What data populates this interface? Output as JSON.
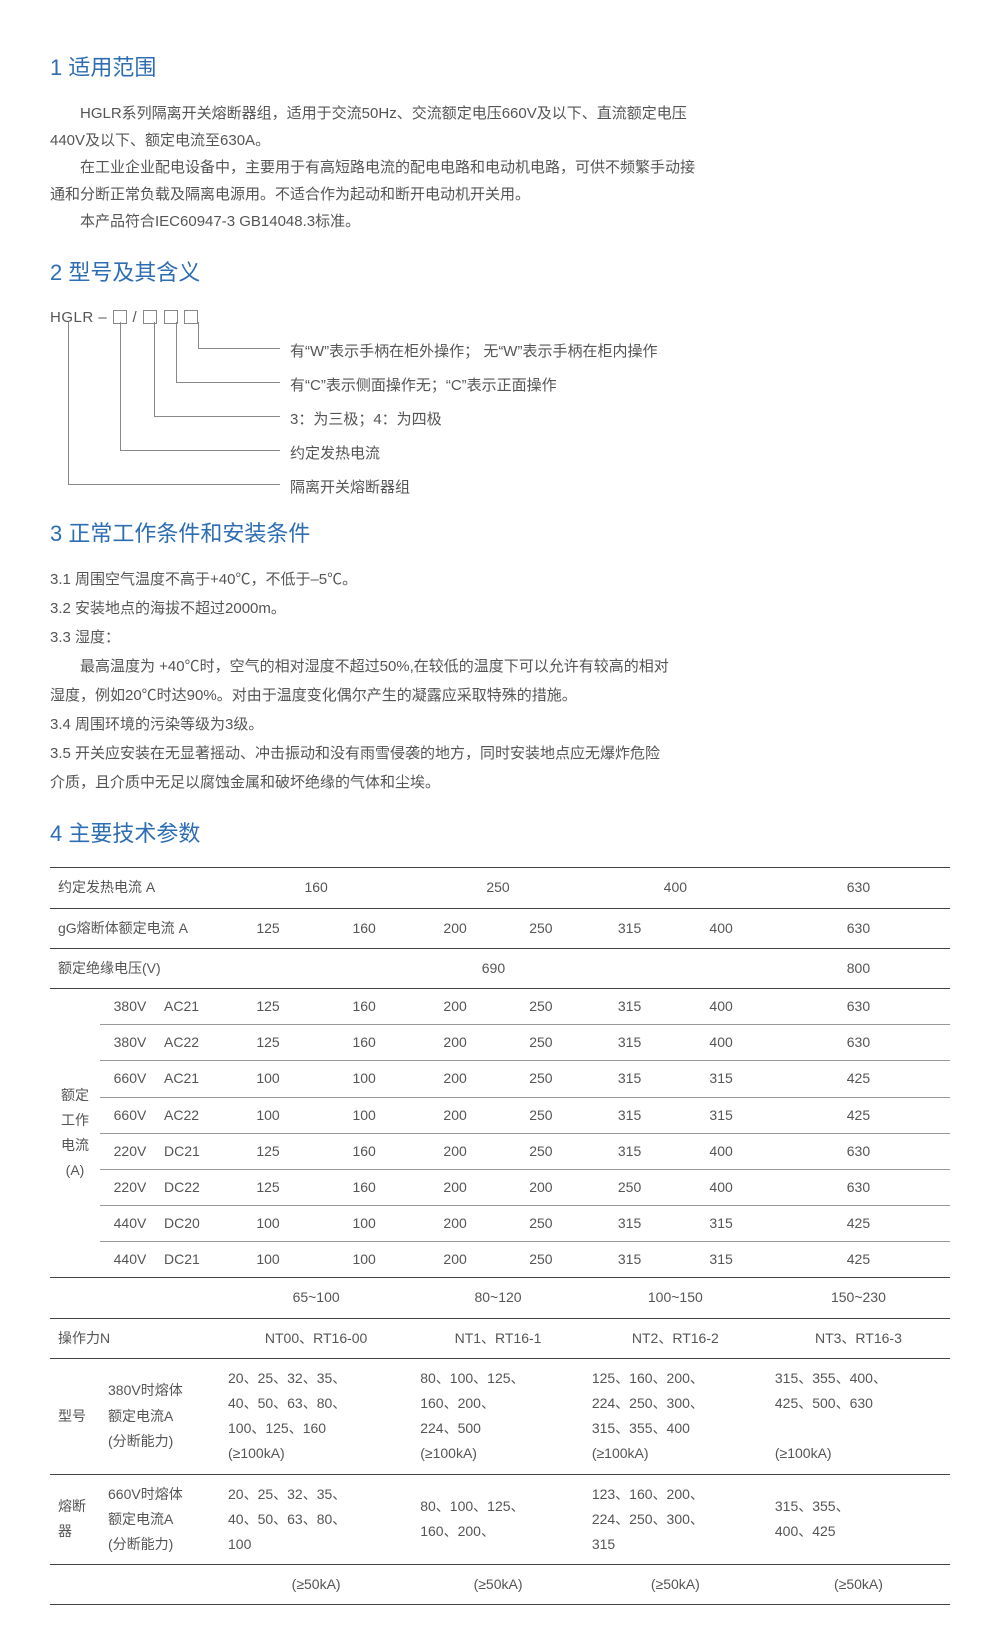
{
  "s1": {
    "title": "1 适用范围",
    "p1": "HGLR系列隔离开关熔断器组，适用于交流50Hz、交流额定电压660V及以下、直流额定电压",
    "p1b": "440V及以下、额定电流至630A。",
    "p2": "在工业企业配电设备中，主要用于有高短路电流的配电电路和电动机电路，可供不频繁手动接",
    "p2b": "通和分断正常负载及隔离电源用。不适合作为起动和断开电动机开关用。",
    "p3": "本产品符合IEC60947-3 GB14048.3标准。"
  },
  "s2": {
    "title": "2 型号及其含义",
    "code": "HGLR – ",
    "slash": " / ",
    "l1": "有“W”表示手柄在柜外操作； 无“W”表示手柄在柜内操作",
    "l2": "有“C”表示侧面操作无；“C”表示正面操作",
    "l3": "3：为三极；4：为四极",
    "l4": "约定发热电流",
    "l5": "隔离开关熔断器组"
  },
  "s3": {
    "title": "3 正常工作条件和安装条件",
    "i1": "3.1 周围空气温度不高于+40℃，不低于–5℃。",
    "i2": "3.2 安装地点的海拔不超过2000m。",
    "i3": "3.3 湿度：",
    "i3a": "最高温度为 +40℃时，空气的相对湿度不超过50%,在较低的温度下可以允许有较高的相对",
    "i3b": "湿度，例如20℃时达90%。对由于温度变化偶尔产生的凝露应采取特殊的措施。",
    "i4": "3.4 周围环境的污染等级为3级。",
    "i5": "3.5 开关应安装在无显著摇动、冲击振动和没有雨雪侵袭的地方，同时安装地点应无爆炸危险",
    "i5b": "介质，且介质中无足以腐蚀金属和破坏绝缘的气体和尘埃。"
  },
  "s4": {
    "title": "4 主要技术参数"
  },
  "t": {
    "r1": {
      "label": "约定发热电流 A",
      "c": [
        "160",
        "250",
        "400",
        "630"
      ]
    },
    "r2": {
      "label": "gG熔断体额定电流 A",
      "c": [
        "125",
        "160",
        "200",
        "250",
        "315",
        "400",
        "630"
      ]
    },
    "r3": {
      "label": "额定绝缘电压(V)",
      "c690": "690",
      "c800": "800"
    },
    "ratedLabel": "额定\n工作\n电流\n(A)",
    "rows": [
      {
        "v": "380V",
        "code": "AC21",
        "c": [
          "125",
          "160",
          "200",
          "250",
          "315",
          "400",
          "630"
        ]
      },
      {
        "v": "380V",
        "code": "AC22",
        "c": [
          "125",
          "160",
          "200",
          "250",
          "315",
          "400",
          "630"
        ]
      },
      {
        "v": "660V",
        "code": "AC21",
        "c": [
          "100",
          "100",
          "200",
          "250",
          "315",
          "315",
          "425"
        ]
      },
      {
        "v": "660V",
        "code": "AC22",
        "c": [
          "100",
          "100",
          "200",
          "250",
          "315",
          "315",
          "425"
        ]
      },
      {
        "v": "220V",
        "code": "DC21",
        "c": [
          "125",
          "160",
          "200",
          "250",
          "315",
          "400",
          "630"
        ]
      },
      {
        "v": "220V",
        "code": "DC22",
        "c": [
          "125",
          "160",
          "200",
          "200",
          "250",
          "400",
          "630"
        ]
      },
      {
        "v": "440V",
        "code": "DC20",
        "c": [
          "100",
          "100",
          "200",
          "250",
          "315",
          "315",
          "425"
        ]
      },
      {
        "v": "440V",
        "code": "DC21",
        "c": [
          "100",
          "100",
          "200",
          "250",
          "315",
          "315",
          "425"
        ]
      }
    ],
    "rangeRow": [
      "65~100",
      "80~120",
      "100~150",
      "150~230"
    ],
    "opForce": {
      "label": "操作力N",
      "c": [
        "NT00、RT16-00",
        "NT1、RT16-1",
        "NT2、RT16-2",
        "NT3、RT16-3"
      ]
    },
    "model": {
      "label": "型号",
      "sub380": "380V时熔体\n额定电流A\n(分断能力)",
      "col1": "20、25、32、35、\n40、50、63、80、\n100、125、160\n(≥100kA)",
      "col2": "80、100、125、\n160、200、\n224、500\n(≥100kA)",
      "col3": "125、160、200、\n224、250、300、\n315、355、400\n(≥100kA)",
      "col4": "315、355、400、\n425、500、630\n\n(≥100kA)"
    },
    "fuse": {
      "label": "熔断器",
      "sub660": "660V时熔体\n额定电流A\n(分断能力)",
      "col1": "20、25、32、35、\n40、50、63、80、\n100",
      "col2": "80、100、125、\n160、200、",
      "col3": "123、160、200、\n224、250、300、\n315",
      "col4": "315、355、\n400、425",
      "b1": "(≥50kA)",
      "b2": "(≥50kA)",
      "b3": "(≥50kA)",
      "b4": "(≥50kA)"
    }
  }
}
